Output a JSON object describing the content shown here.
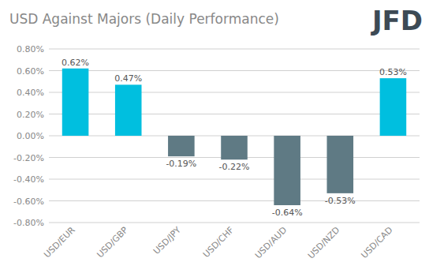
{
  "chart_data": {
    "type": "bar",
    "title": "USD Against Majors (Daily Performance)",
    "annotations": [
      "JFD"
    ],
    "categories": [
      "USD/EUR",
      "USD/GBP",
      "USD/JPY",
      "USD/CHF",
      "USD/AUD",
      "USD/NZD",
      "USD/CAD"
    ],
    "values": [
      0.62,
      0.47,
      -0.19,
      -0.22,
      -0.64,
      -0.53,
      0.53
    ],
    "value_labels": [
      "0.62%",
      "0.47%",
      "-0.19%",
      "-0.22%",
      "-0.64%",
      "-0.53%",
      "0.53%"
    ],
    "colors": [
      "#00BFDF",
      "#00BFDF",
      "#5F7A84",
      "#5F7A84",
      "#5F7A84",
      "#5F7A84",
      "#00BFDF"
    ],
    "ylim": [
      -0.8,
      0.8
    ],
    "yticks": [
      {
        "value": -0.8,
        "label": "-0.80%"
      },
      {
        "value": -0.6,
        "label": "-0.60%"
      },
      {
        "value": -0.4,
        "label": "-0.40%"
      },
      {
        "value": -0.2,
        "label": "-0.20%"
      },
      {
        "value": 0,
        "label": "0.00%"
      },
      {
        "value": 0.2,
        "label": "0.20%"
      },
      {
        "value": 0.4,
        "label": "0.40%"
      },
      {
        "value": 0.6,
        "label": "0.60%"
      },
      {
        "value": 0.8,
        "label": "0.80%"
      }
    ],
    "grid": true,
    "data_labels": true
  }
}
